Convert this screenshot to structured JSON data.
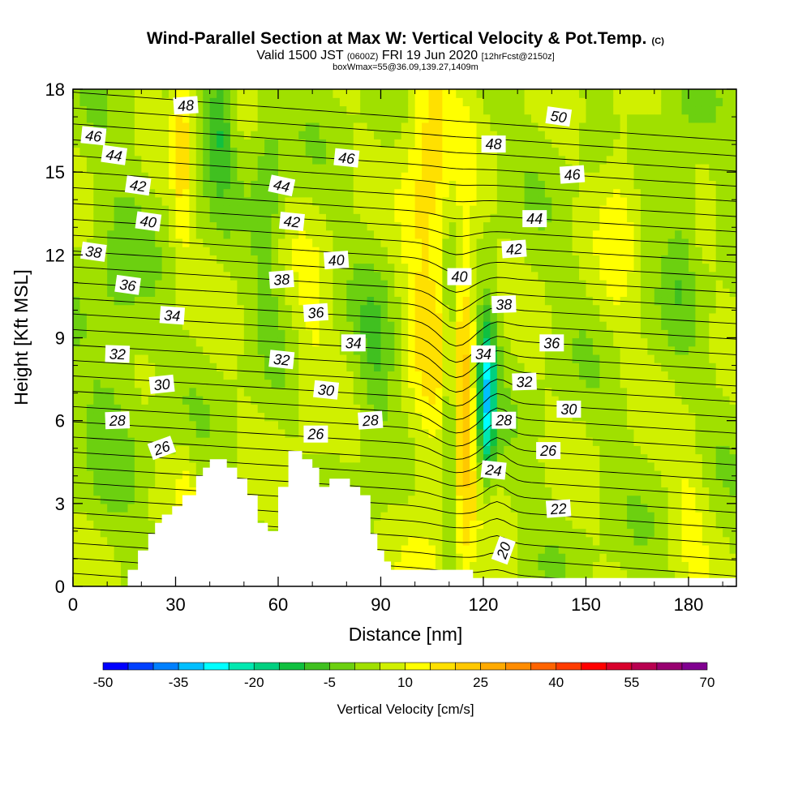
{
  "title": {
    "main": "Wind-Parallel Section at Max W: Vertical Velocity & Pot.Temp.",
    "main_mark": "(C)",
    "valid_prefix": "Valid 1500 JST",
    "valid_utc": "(0600Z)",
    "valid_date": "FRI 19 Jun 2020",
    "forecast": "[12hrFcst@2150z]",
    "box_info": "boxWmax=55@36.09,139.27,1409m"
  },
  "chart_data": {
    "type": "heatmap",
    "xlabel": "Distance [nm]",
    "ylabel": "Height [Kft MSL]",
    "xlim": [
      0,
      194
    ],
    "ylim": [
      0,
      18
    ],
    "x_ticks": [
      0,
      30,
      60,
      90,
      120,
      150,
      180
    ],
    "y_ticks": [
      0,
      3,
      6,
      9,
      12,
      15,
      18
    ],
    "colorbar": {
      "label": "Vertical Velocity [cm/s]",
      "min": -50,
      "max": 70,
      "step": 5,
      "tick_labels": [
        "-50",
        "-35",
        "-20",
        "-5",
        "10",
        "25",
        "40",
        "55",
        "70"
      ],
      "colors": [
        "#0000ff",
        "#0040ff",
        "#0080ff",
        "#00bfff",
        "#00ffff",
        "#00e8b0",
        "#00d080",
        "#10c040",
        "#40c020",
        "#6cd010",
        "#a0e000",
        "#d0f000",
        "#ffff00",
        "#ffe000",
        "#ffc800",
        "#ffaa00",
        "#ff8c00",
        "#ff6400",
        "#ff3c00",
        "#ff0000",
        "#d8002c",
        "#b80050",
        "#980070",
        "#800090"
      ]
    },
    "terrain": [
      [
        16,
        0
      ],
      [
        16,
        0.6
      ],
      [
        19,
        0.6
      ],
      [
        19,
        1.3
      ],
      [
        22,
        1.3
      ],
      [
        22,
        1.9
      ],
      [
        24,
        1.9
      ],
      [
        24,
        2.3
      ],
      [
        26,
        2.3
      ],
      [
        26,
        2.6
      ],
      [
        29,
        2.6
      ],
      [
        29,
        2.9
      ],
      [
        32,
        2.9
      ],
      [
        32,
        3.3
      ],
      [
        36,
        3.3
      ],
      [
        36,
        4.0
      ],
      [
        38,
        4.0
      ],
      [
        38,
        4.3
      ],
      [
        40,
        4.3
      ],
      [
        40,
        4.6
      ],
      [
        45,
        4.6
      ],
      [
        45,
        4.3
      ],
      [
        48,
        4.3
      ],
      [
        48,
        3.9
      ],
      [
        51,
        3.9
      ],
      [
        51,
        3.3
      ],
      [
        54,
        3.3
      ],
      [
        54,
        2.3
      ],
      [
        57,
        2.3
      ],
      [
        57,
        2.0
      ],
      [
        60,
        2.0
      ],
      [
        60,
        3.6
      ],
      [
        63,
        3.6
      ],
      [
        63,
        4.9
      ],
      [
        67,
        4.9
      ],
      [
        67,
        4.6
      ],
      [
        70,
        4.6
      ],
      [
        70,
        4.3
      ],
      [
        72,
        4.3
      ],
      [
        72,
        3.6
      ],
      [
        75,
        3.6
      ],
      [
        75,
        3.9
      ],
      [
        81,
        3.9
      ],
      [
        81,
        3.6
      ],
      [
        84,
        3.6
      ],
      [
        84,
        3.3
      ],
      [
        87,
        3.3
      ],
      [
        87,
        1.9
      ],
      [
        89,
        1.9
      ],
      [
        89,
        1.3
      ],
      [
        91,
        1.3
      ],
      [
        91,
        0.9
      ],
      [
        93,
        0.9
      ],
      [
        93,
        0.6
      ],
      [
        117,
        0.6
      ],
      [
        117,
        0.3
      ],
      [
        194,
        0.3
      ],
      [
        194,
        0
      ]
    ],
    "theta_labels": [
      {
        "value": "48",
        "x": 33,
        "y": 17.4,
        "rot": -4
      },
      {
        "value": "46",
        "x": 6,
        "y": 16.3,
        "rot": 6
      },
      {
        "value": "44",
        "x": 12,
        "y": 15.6,
        "rot": 8
      },
      {
        "value": "42",
        "x": 19,
        "y": 14.5,
        "rot": 8
      },
      {
        "value": "40",
        "x": 22,
        "y": 13.2,
        "rot": 8
      },
      {
        "value": "38",
        "x": 6,
        "y": 12.1,
        "rot": 8
      },
      {
        "value": "36",
        "x": 16,
        "y": 10.9,
        "rot": 8
      },
      {
        "value": "34",
        "x": 29,
        "y": 9.8,
        "rot": 4
      },
      {
        "value": "32",
        "x": 13,
        "y": 8.4,
        "rot": 2
      },
      {
        "value": "30",
        "x": 26,
        "y": 7.3,
        "rot": -6
      },
      {
        "value": "28",
        "x": 13,
        "y": 6.0,
        "rot": -2
      },
      {
        "value": "26",
        "x": 26,
        "y": 5.0,
        "rot": -20
      },
      {
        "value": "44",
        "x": 61,
        "y": 14.5,
        "rot": 12
      },
      {
        "value": "42",
        "x": 64,
        "y": 13.2,
        "rot": 6
      },
      {
        "value": "38",
        "x": 61,
        "y": 11.1,
        "rot": -4
      },
      {
        "value": "36",
        "x": 71,
        "y": 9.9,
        "rot": -4
      },
      {
        "value": "32",
        "x": 61,
        "y": 8.2,
        "rot": 6
      },
      {
        "value": "30",
        "x": 74,
        "y": 7.1,
        "rot": 6
      },
      {
        "value": "26",
        "x": 71,
        "y": 5.5,
        "rot": 0
      },
      {
        "value": "46",
        "x": 80,
        "y": 15.5,
        "rot": 6
      },
      {
        "value": "40",
        "x": 77,
        "y": 11.8,
        "rot": -4
      },
      {
        "value": "34",
        "x": 82,
        "y": 8.8,
        "rot": 0
      },
      {
        "value": "28",
        "x": 87,
        "y": 6.0,
        "rot": -4
      },
      {
        "value": "40",
        "x": 113,
        "y": 11.2,
        "rot": 0
      },
      {
        "value": "34",
        "x": 120,
        "y": 8.4,
        "rot": 0
      },
      {
        "value": "48",
        "x": 123,
        "y": 16.0,
        "rot": 0
      },
      {
        "value": "42",
        "x": 129,
        "y": 12.2,
        "rot": -4
      },
      {
        "value": "38",
        "x": 126,
        "y": 10.2,
        "rot": -2
      },
      {
        "value": "28",
        "x": 126,
        "y": 6.0,
        "rot": 0
      },
      {
        "value": "24",
        "x": 123,
        "y": 4.2,
        "rot": 6
      },
      {
        "value": "32",
        "x": 132,
        "y": 7.4,
        "rot": -2
      },
      {
        "value": "20",
        "x": 126,
        "y": 1.3,
        "rot": -70
      },
      {
        "value": "50",
        "x": 142,
        "y": 17.0,
        "rot": 8
      },
      {
        "value": "46",
        "x": 146,
        "y": 14.9,
        "rot": -4
      },
      {
        "value": "44",
        "x": 135,
        "y": 13.3,
        "rot": 0
      },
      {
        "value": "36",
        "x": 140,
        "y": 8.8,
        "rot": 0
      },
      {
        "value": "30",
        "x": 145,
        "y": 6.4,
        "rot": 0
      },
      {
        "value": "26",
        "x": 139,
        "y": 4.9,
        "rot": 0
      },
      {
        "value": "22",
        "x": 142,
        "y": 2.8,
        "rot": -4
      }
    ],
    "contour_field": {
      "isotherm_levels": [
        19,
        20,
        21,
        22,
        23,
        24,
        25,
        26,
        27,
        28,
        29,
        30,
        31,
        32,
        33,
        34,
        35,
        36,
        37,
        38,
        39,
        40,
        41,
        42,
        43,
        44,
        45,
        46,
        47,
        48,
        49,
        50,
        51
      ]
    }
  }
}
